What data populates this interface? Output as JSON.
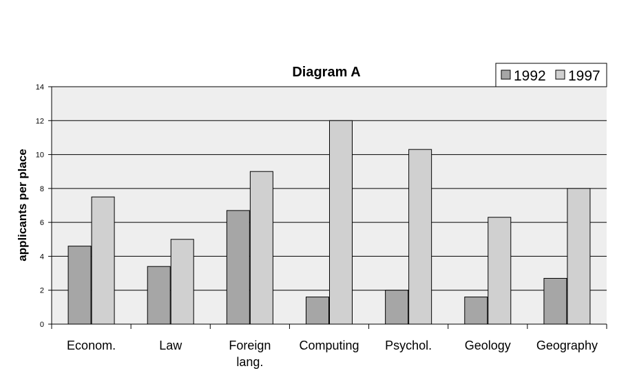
{
  "chart_data": {
    "type": "bar",
    "title": "Diagram A",
    "xlabel": "",
    "ylabel": "applicants per place",
    "ylim": [
      0,
      14
    ],
    "yticks": [
      0,
      2,
      4,
      6,
      8,
      10,
      12,
      14
    ],
    "categories": [
      [
        "Econom."
      ],
      [
        "Law"
      ],
      [
        "Foreign",
        "lang."
      ],
      [
        "Computing"
      ],
      [
        "Psychol."
      ],
      [
        "Geology"
      ],
      [
        "Geography"
      ]
    ],
    "series": [
      {
        "name": "1992",
        "color": "#a6a6a6",
        "values": [
          4.6,
          3.4,
          6.7,
          1.6,
          2.0,
          1.6,
          2.7
        ]
      },
      {
        "name": "1997",
        "color": "#d0d0d0",
        "values": [
          7.5,
          5.0,
          9.0,
          12.0,
          10.3,
          6.3,
          8.0
        ]
      }
    ],
    "grid": true,
    "plot_background": "#eeeeee",
    "legend_position": "top-right"
  }
}
